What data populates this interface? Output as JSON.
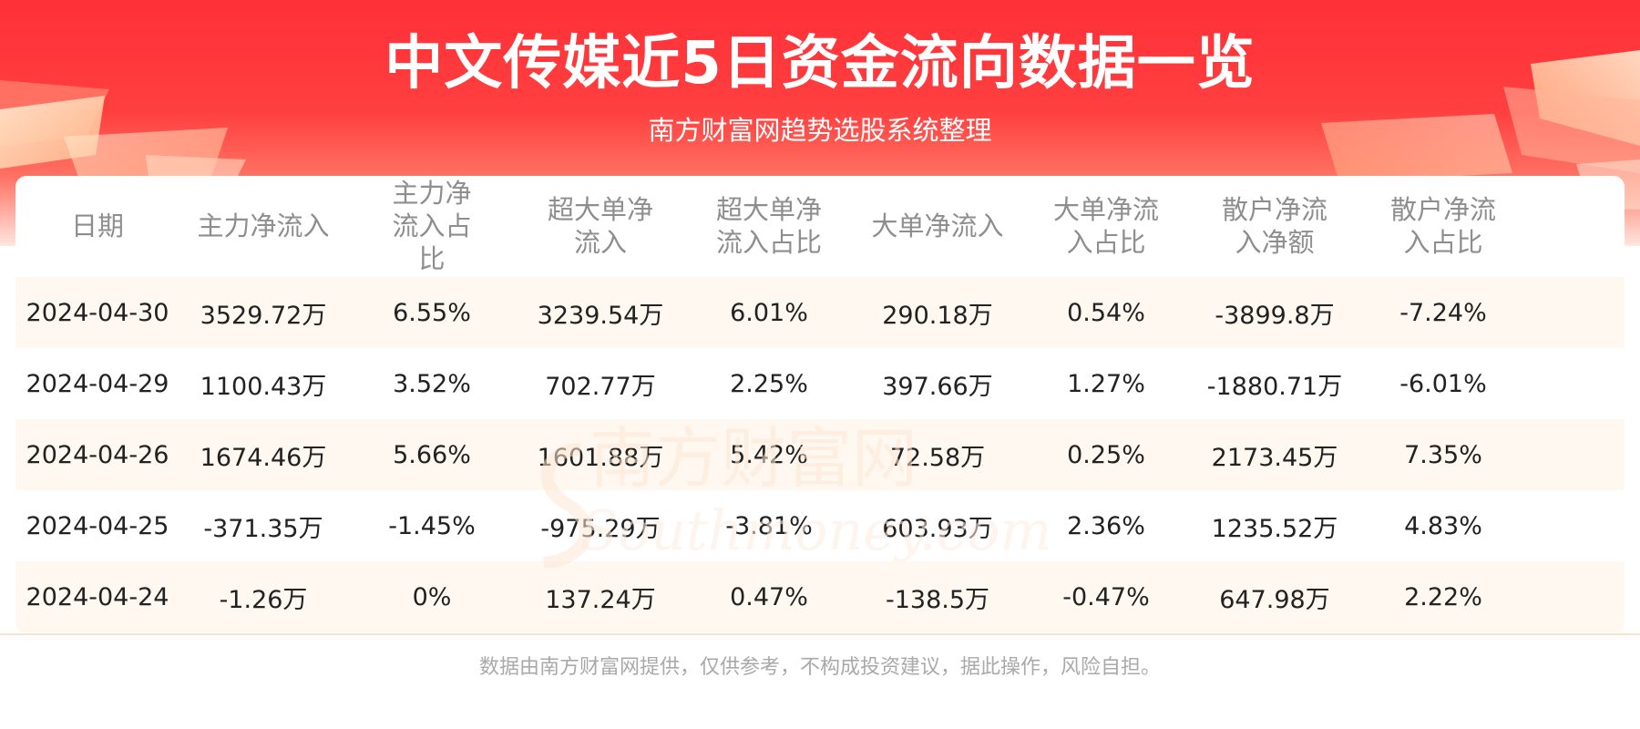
{
  "header": {
    "title": "中文传媒近5日资金流向数据一览",
    "subtitle": "南方财富网趋势选股系统整理"
  },
  "watermark": {
    "cn": "南方财富网",
    "en": "Southmoney.com"
  },
  "table": {
    "columns": [
      "日期",
      "主力净流入",
      "主力净流入占比",
      "超大单净流入",
      "超大单净流入占比",
      "大单净流入",
      "大单净流入占比",
      "散户净流入净额",
      "散户净流入占比"
    ],
    "rows": [
      [
        "2024-04-30",
        "3529.72万",
        "6.55%",
        "3239.54万",
        "6.01%",
        "290.18万",
        "0.54%",
        "-3899.8万",
        "-7.24%"
      ],
      [
        "2024-04-29",
        "1100.43万",
        "3.52%",
        "702.77万",
        "2.25%",
        "397.66万",
        "1.27%",
        "-1880.71万",
        "-6.01%"
      ],
      [
        "2024-04-26",
        "1674.46万",
        "5.66%",
        "1601.88万",
        "5.42%",
        "72.58万",
        "0.25%",
        "2173.45万",
        "7.35%"
      ],
      [
        "2024-04-25",
        "-371.35万",
        "-1.45%",
        "-975.29万",
        "-3.81%",
        "603.93万",
        "2.36%",
        "1235.52万",
        "4.83%"
      ],
      [
        "2024-04-24",
        "-1.26万",
        "0%",
        "137.24万",
        "0.47%",
        "-138.5万",
        "-0.47%",
        "647.98万",
        "2.22%"
      ]
    ]
  },
  "footer": {
    "disclaimer": "数据由南方财富网提供，仅供参考，不构成投资建议，据此操作，风险自担。"
  },
  "colors": {
    "banner_red": "#ff3038",
    "row_shade": "#fff8f1",
    "header_text": "#8e8e8e",
    "cell_text": "#222222",
    "footer_text": "#a9a9a9"
  }
}
